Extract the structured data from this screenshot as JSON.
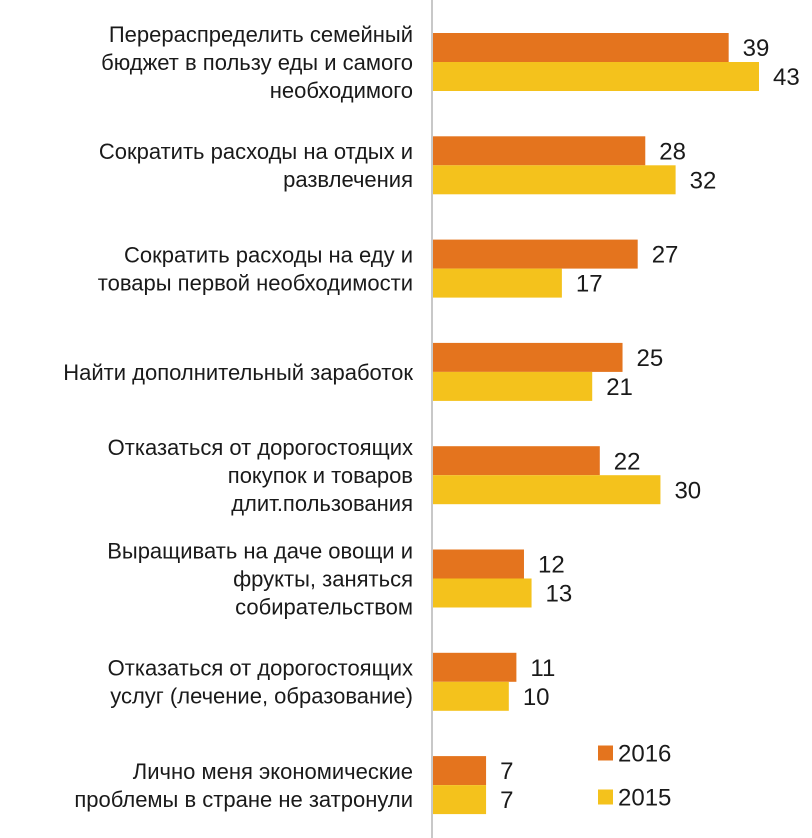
{
  "chart_data": {
    "type": "bar",
    "orientation": "horizontal",
    "categories": [
      "Перераспределить семейный бюджет в пользу еды и самого необходимого",
      "Сократить расходы на отдых и развлечения",
      "Сократить расходы на еду и товары первой необходимости",
      "Найти дополнительный заработок",
      "Отказаться от дорогостоящих покупок и товаров длит.пользования",
      "Выращивать на даче овощи и фрукты, заняться собирательством",
      "Отказаться от дорогостоящих услуг (лечение, образование)",
      "Лично меня экономические проблемы в стране не затронули"
    ],
    "category_lines": [
      [
        "Перераспределить семейный",
        "бюджет в пользу еды и самого",
        "необходимого"
      ],
      [
        "Сократить расходы на отдых и",
        "развлечения"
      ],
      [
        "Сократить расходы на еду и",
        "товары первой необходимости"
      ],
      [
        "Найти дополнительный заработок"
      ],
      [
        "Отказаться от дорогостоящих",
        "покупок и товаров",
        "длит.пользования"
      ],
      [
        "Выращивать на даче овощи и",
        "фрукты, заняться",
        "собирательством"
      ],
      [
        "Отказаться от дорогостоящих",
        "услуг (лечение, образование)"
      ],
      [
        "Лично меня экономические",
        "проблемы в стране не затронули"
      ]
    ],
    "series": [
      {
        "name": "2016",
        "color": "#e4741e",
        "values": [
          39,
          28,
          27,
          25,
          22,
          12,
          11,
          7
        ]
      },
      {
        "name": "2015",
        "color": "#f4c21c",
        "values": [
          43,
          32,
          17,
          21,
          30,
          13,
          10,
          7
        ]
      }
    ],
    "xlim": [
      0,
      43
    ],
    "data_labels": true,
    "legend": "bottom-right",
    "grid": false
  }
}
